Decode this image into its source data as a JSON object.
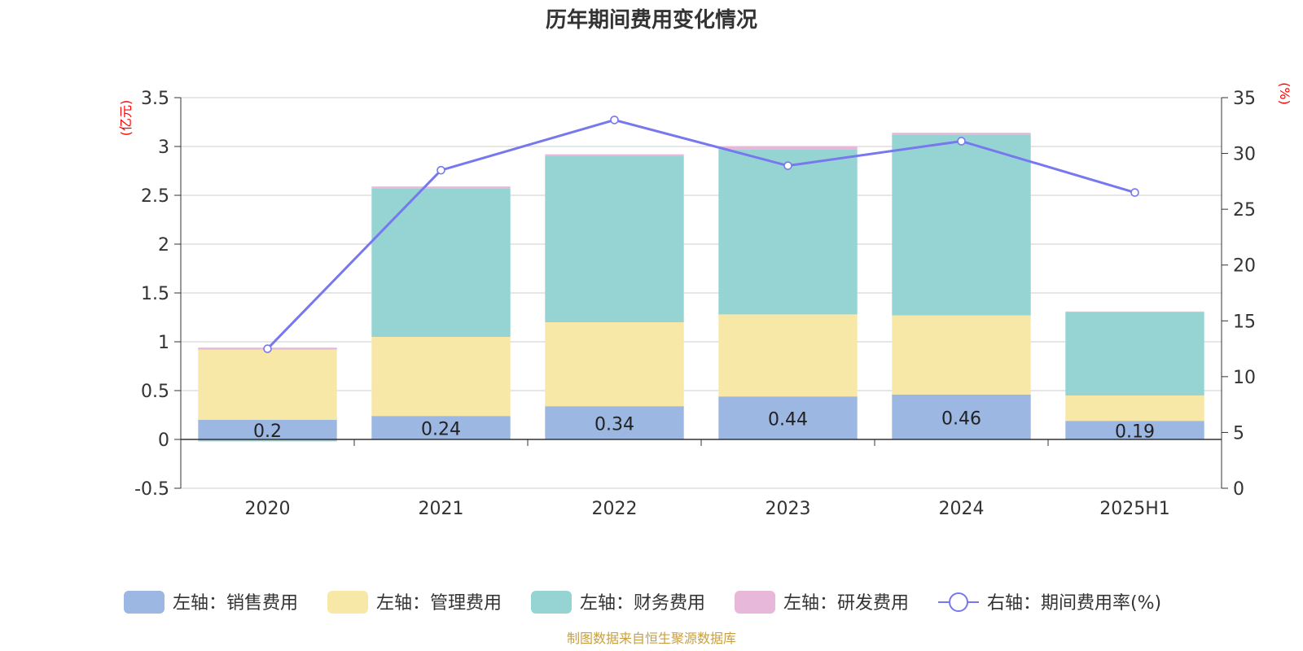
{
  "chart_data": {
    "type": "bar",
    "title": "历年期间费用变化情况",
    "categories": [
      "2020",
      "2021",
      "2022",
      "2023",
      "2024",
      "2025H1"
    ],
    "left_axis": {
      "unit": "(亿元)",
      "min": -0.5,
      "max": 3.5,
      "ticks": [
        -0.5,
        0,
        0.5,
        1,
        1.5,
        2,
        2.5,
        3,
        3.5
      ],
      "tick_labels": [
        "-0.5",
        "0",
        "0.5",
        "1",
        "1.5",
        "2",
        "2.5",
        "3",
        "3.5"
      ]
    },
    "right_axis": {
      "unit": "(%)",
      "min": 0,
      "max": 35,
      "ticks": [
        0,
        5,
        10,
        15,
        20,
        25,
        30,
        35
      ],
      "tick_labels": [
        "0",
        "5",
        "10",
        "15",
        "20",
        "25",
        "30",
        "35"
      ]
    },
    "series": [
      {
        "name": "左轴：销售费用",
        "type": "bar",
        "axis": "left",
        "color": "#9bb7e2",
        "values": [
          0.2,
          0.24,
          0.34,
          0.44,
          0.46,
          0.19
        ],
        "labels": [
          "0.2",
          "0.24",
          "0.34",
          "0.44",
          "0.46",
          "0.19"
        ]
      },
      {
        "name": "左轴：管理费用",
        "type": "bar",
        "axis": "left",
        "color": "#f8e8a8",
        "values": [
          0.72,
          0.81,
          0.86,
          0.84,
          0.81,
          0.26
        ]
      },
      {
        "name": "左轴：财务费用",
        "type": "bar",
        "axis": "left",
        "color": "#96d4d4",
        "values": [
          -0.02,
          1.52,
          1.7,
          1.69,
          1.85,
          0.85
        ]
      },
      {
        "name": "左轴：研发费用",
        "type": "bar",
        "axis": "left",
        "color": "#e8b8da",
        "values": [
          0.02,
          0.02,
          0.02,
          0.03,
          0.02,
          0.01
        ]
      },
      {
        "name": "右轴：期间费用率(%)",
        "type": "line",
        "axis": "right",
        "color": "#7878ee",
        "values": [
          12.5,
          28.5,
          33.0,
          28.9,
          31.1,
          26.5
        ]
      }
    ],
    "legend_position": "bottom",
    "grid": true
  },
  "source": "制图数据来自恒生聚源数据库"
}
